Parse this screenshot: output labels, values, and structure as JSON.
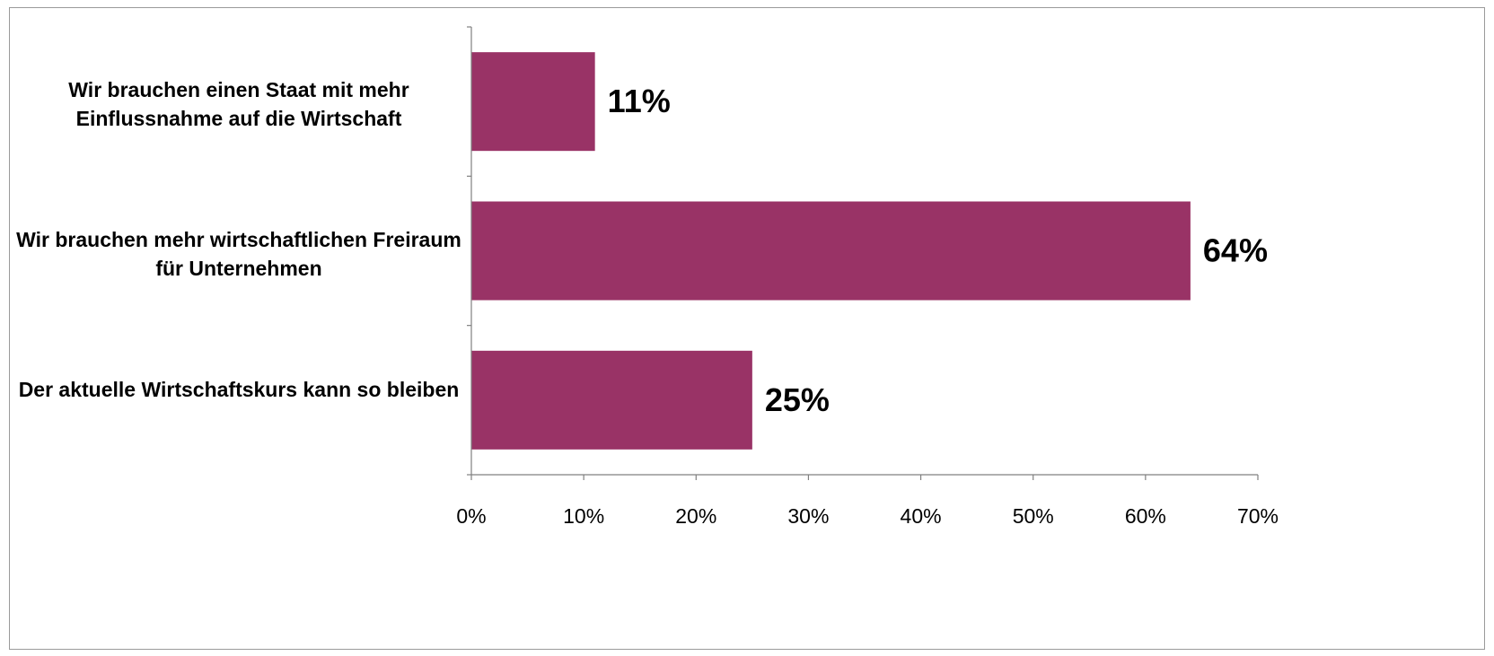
{
  "chart_data": {
    "type": "bar",
    "orientation": "horizontal",
    "categories": [
      "Wir brauchen einen Staat mit mehr Einflussnahme auf die Wirtschaft",
      "Wir brauchen mehr wirtschaftlichen Freiraum für Unternehmen",
      "Der aktuelle Wirtschaftskurs  kann so bleiben"
    ],
    "values": [
      11,
      64,
      25
    ],
    "data_labels": [
      "11%",
      "64%",
      "25%"
    ],
    "xlim": [
      0,
      70
    ],
    "xticks": [
      0,
      10,
      20,
      30,
      40,
      50,
      60,
      70
    ],
    "tick_labels": [
      "0%",
      "10%",
      "20%",
      "30%",
      "40%",
      "50%",
      "60%",
      "70%"
    ],
    "grid": false,
    "legend": "none",
    "bar_color": "#993366"
  }
}
